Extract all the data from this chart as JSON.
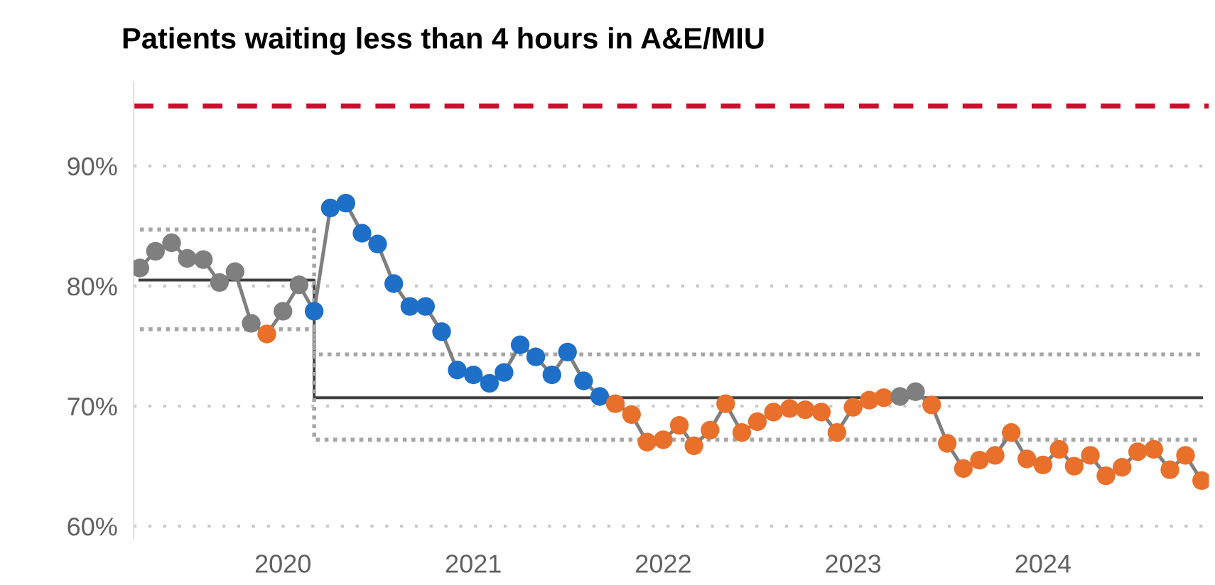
{
  "chart_data": {
    "type": "line",
    "title": "Patients waiting less than 4 hours in A&E/MIU",
    "x": [
      "2019-04",
      "2019-05",
      "2019-06",
      "2019-07",
      "2019-08",
      "2019-09",
      "2019-10",
      "2019-11",
      "2019-12",
      "2020-01",
      "2020-02",
      "2020-03",
      "2020-04",
      "2020-05",
      "2020-06",
      "2020-07",
      "2020-08",
      "2020-09",
      "2020-10",
      "2020-11",
      "2020-12",
      "2021-01",
      "2021-02",
      "2021-03",
      "2021-04",
      "2021-05",
      "2021-06",
      "2021-07",
      "2021-08",
      "2021-09",
      "2021-10",
      "2021-11",
      "2021-12",
      "2022-01",
      "2022-02",
      "2022-03",
      "2022-04",
      "2022-05",
      "2022-06",
      "2022-07",
      "2022-08",
      "2022-09",
      "2022-10",
      "2022-11",
      "2022-12",
      "2023-01",
      "2023-02",
      "2023-03",
      "2023-04",
      "2023-05",
      "2023-06",
      "2023-07",
      "2023-08",
      "2023-09",
      "2023-10",
      "2023-11",
      "2023-12",
      "2024-01",
      "2024-02",
      "2024-03",
      "2024-04",
      "2024-05",
      "2024-06",
      "2024-07",
      "2024-08",
      "2024-09",
      "2024-10",
      "2024-11"
    ],
    "series": [
      {
        "type": "step",
        "color": "#404040",
        "line_style": "solid",
        "marker": "none",
        "x": [
          "2019-04",
          "2020-03",
          "2024-11"
        ],
        "values": [
          80.5,
          70.7,
          70.7
        ]
      },
      {
        "type": "step",
        "color": "#a6a6a6",
        "line_style": "dotted",
        "marker": "none",
        "x": [
          "2019-04",
          "2020-03",
          "2024-11"
        ],
        "values": [
          84.7,
          74.3,
          74.3
        ]
      },
      {
        "type": "step",
        "color": "#a6a6a6",
        "line_style": "dotted",
        "marker": "none",
        "x": [
          "2019-04",
          "2020-03",
          "2024-11"
        ],
        "values": [
          76.4,
          67.2,
          67.2
        ]
      },
      {
        "color": "#7f7f7f",
        "line_style": "solid",
        "marker": "circle",
        "values": [
          81.5,
          82.9,
          83.6,
          82.3,
          82.2,
          80.3,
          81.2,
          76.9,
          76.0,
          77.9,
          80.1,
          77.9,
          86.5,
          86.9,
          84.4,
          83.5,
          80.2,
          78.3,
          78.3,
          76.2,
          73.0,
          72.6,
          71.9,
          72.8,
          75.1,
          74.1,
          72.6,
          74.5,
          72.1,
          70.8,
          70.2,
          69.3,
          67.0,
          67.2,
          68.4,
          66.7,
          68.0,
          70.2,
          67.8,
          68.7,
          69.5,
          69.8,
          69.7,
          69.5,
          67.8,
          69.9,
          70.5,
          70.7,
          70.8,
          71.2,
          70.1,
          66.9,
          64.8,
          65.5,
          65.9,
          67.8,
          65.6,
          65.1,
          66.4,
          65.0,
          65.9,
          64.2,
          64.9,
          66.2,
          66.4,
          64.7,
          65.9,
          63.8
        ],
        "colors": [
          "#7f7f7f",
          "#7f7f7f",
          "#7f7f7f",
          "#7f7f7f",
          "#7f7f7f",
          "#7f7f7f",
          "#7f7f7f",
          "#7f7f7f",
          "#e8702a",
          "#7f7f7f",
          "#7f7f7f",
          "#1e6fc8",
          "#1e6fc8",
          "#1e6fc8",
          "#1e6fc8",
          "#1e6fc8",
          "#1e6fc8",
          "#1e6fc8",
          "#1e6fc8",
          "#1e6fc8",
          "#1e6fc8",
          "#1e6fc8",
          "#1e6fc8",
          "#1e6fc8",
          "#1e6fc8",
          "#1e6fc8",
          "#1e6fc8",
          "#1e6fc8",
          "#1e6fc8",
          "#1e6fc8",
          "#e8702a",
          "#e8702a",
          "#e8702a",
          "#e8702a",
          "#e8702a",
          "#e8702a",
          "#e8702a",
          "#e8702a",
          "#e8702a",
          "#e8702a",
          "#e8702a",
          "#e8702a",
          "#e8702a",
          "#e8702a",
          "#e8702a",
          "#e8702a",
          "#e8702a",
          "#e8702a",
          "#7f7f7f",
          "#7f7f7f",
          "#e8702a",
          "#e8702a",
          "#e8702a",
          "#e8702a",
          "#e8702a",
          "#e8702a",
          "#e8702a",
          "#e8702a",
          "#e8702a",
          "#e8702a",
          "#e8702a",
          "#e8702a",
          "#e8702a",
          "#e8702a",
          "#e8702a",
          "#e8702a",
          "#e8702a",
          "#e8702a"
        ]
      }
    ],
    "ref_lines": [
      {
        "axis": "y",
        "value": 95,
        "color": "#c8102e",
        "line_style": "dashed"
      }
    ],
    "xlim": [
      "2019-03-20",
      "2024-11-15"
    ],
    "xticks": [
      {
        "value": "2020-01",
        "label": "2020"
      },
      {
        "value": "2021-01",
        "label": "2021"
      },
      {
        "value": "2022-01",
        "label": "2022"
      },
      {
        "value": "2023-01",
        "label": "2023"
      },
      {
        "value": "2024-01",
        "label": "2024"
      }
    ],
    "ylim": [
      59,
      97
    ],
    "yticks": [
      {
        "value": 60,
        "label": "60%"
      },
      {
        "value": 70,
        "label": "70%"
      },
      {
        "value": 80,
        "label": "80%"
      },
      {
        "value": 90,
        "label": "90%"
      }
    ],
    "grid": "y",
    "legend": false
  }
}
